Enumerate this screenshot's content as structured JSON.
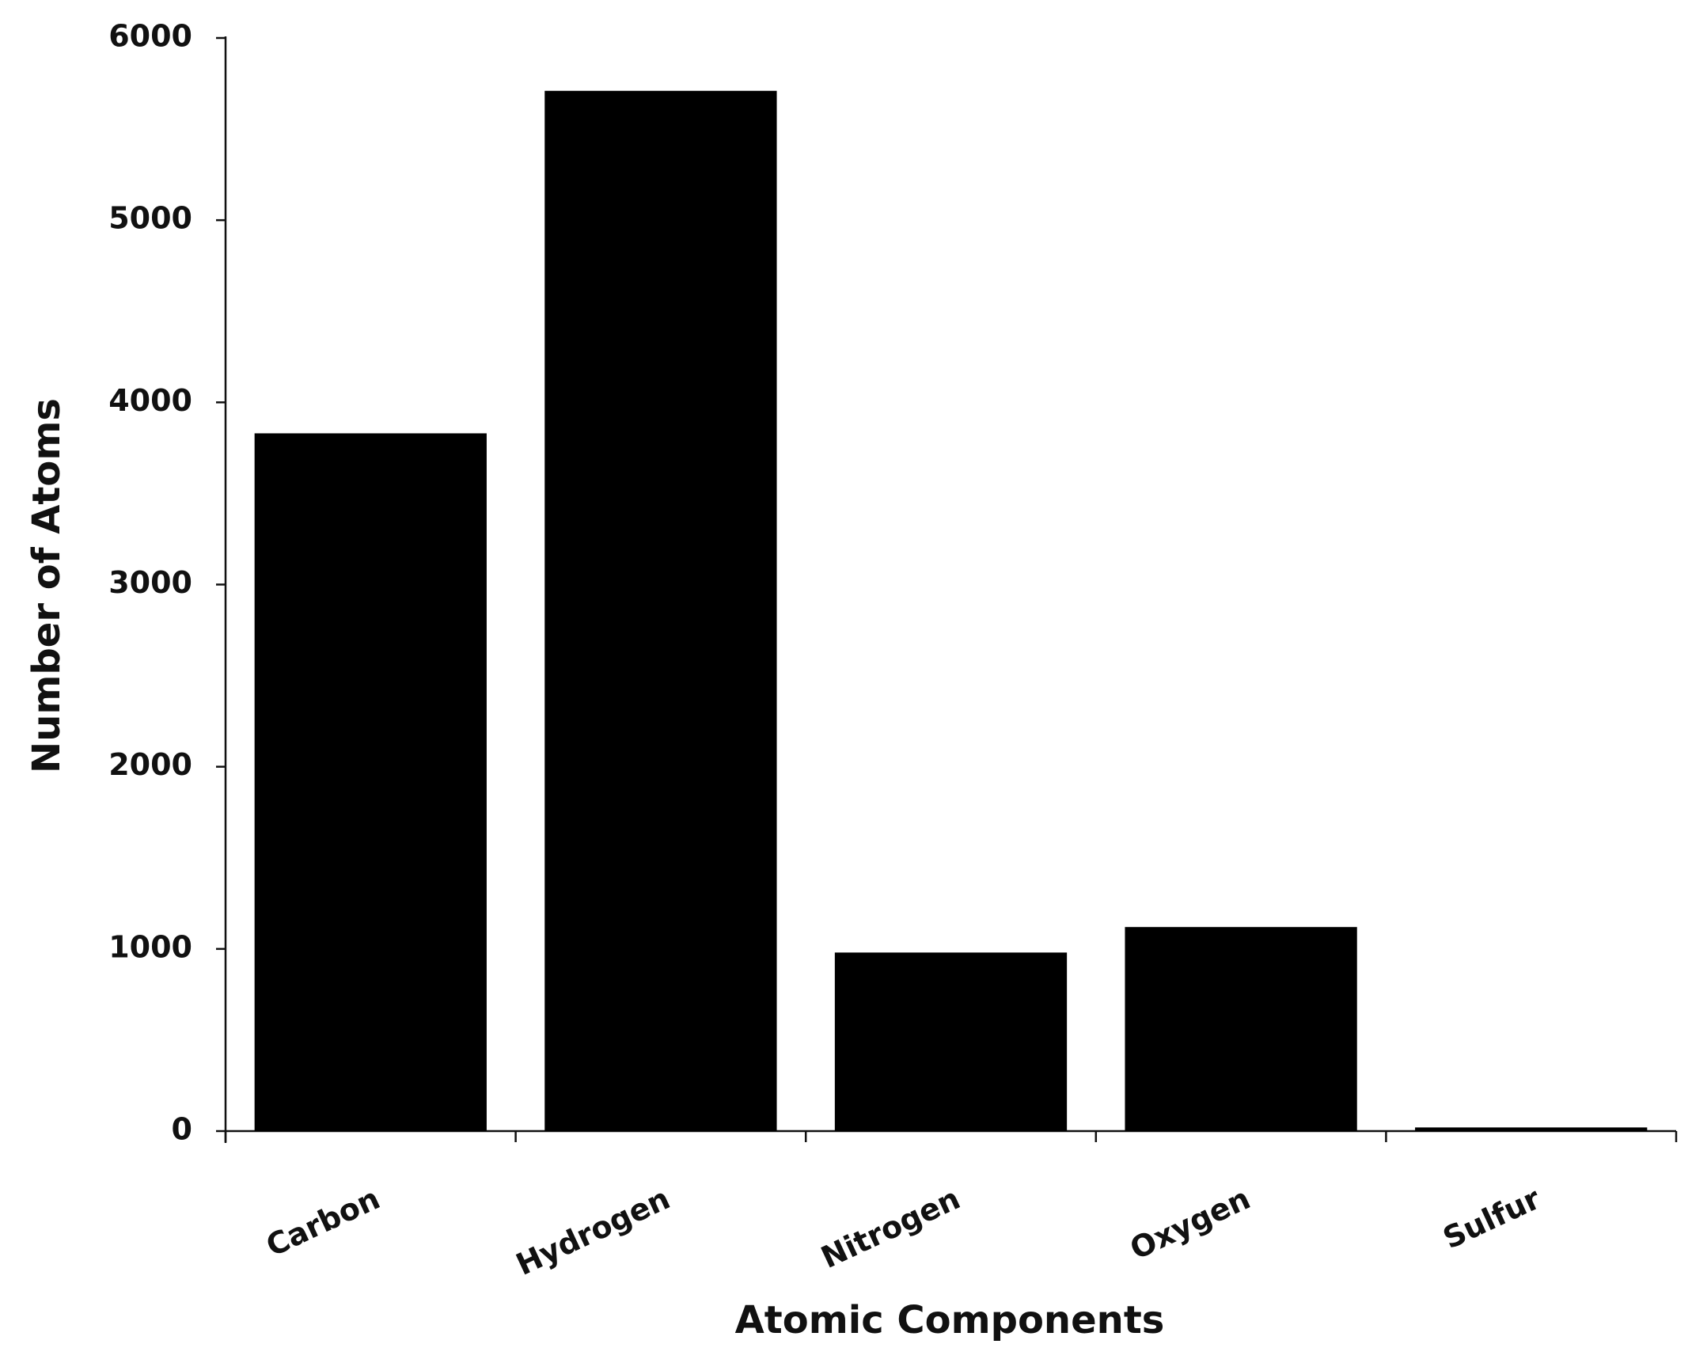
{
  "chart_data": {
    "type": "bar",
    "x_label": "Atomic Components",
    "y_label": "Number of Atoms",
    "categories": [
      "Carbon",
      "Hydrogen",
      "Nitrogen",
      "Oxygen",
      "Sulfur"
    ],
    "values": [
      3830,
      5710,
      980,
      1120,
      20
    ],
    "color": "#000000",
    "ylim": [
      0,
      6000
    ],
    "yticks": [
      0,
      1000,
      2000,
      3000,
      4000,
      5000,
      6000
    ],
    "grid": false
  }
}
